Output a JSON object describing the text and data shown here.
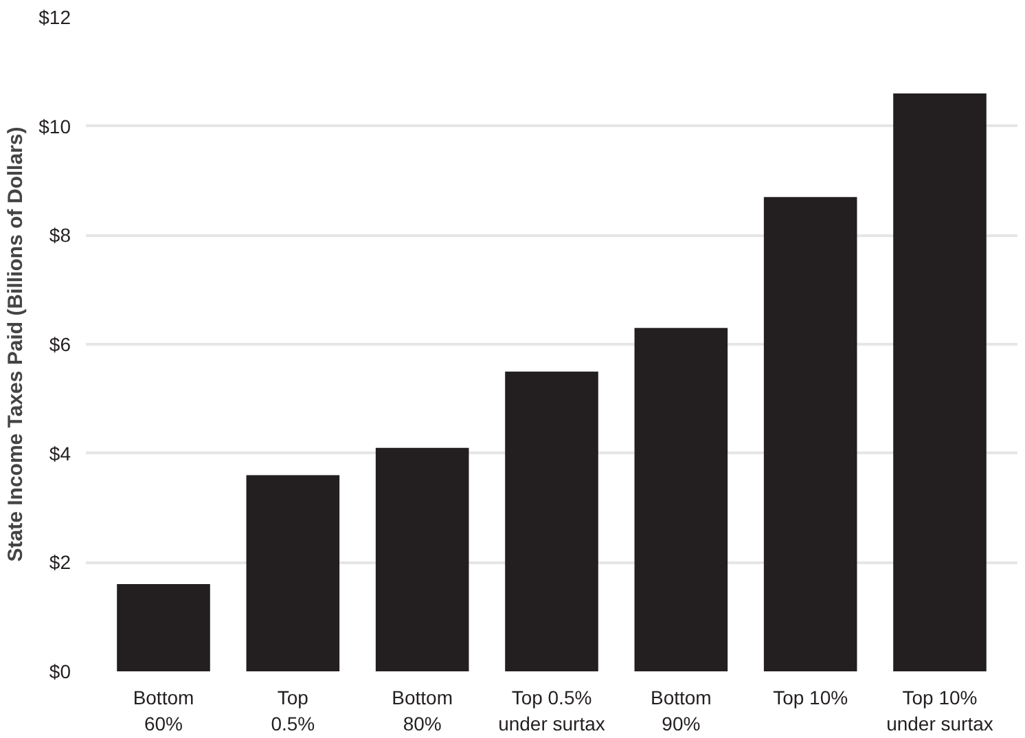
{
  "chart_data": {
    "type": "bar",
    "ylabel": "State Income Taxes Paid (Billions of Dollars)",
    "categories": [
      "Bottom\n60%",
      "Top\n0.5%",
      "Bottom\n80%",
      "Top 0.5%\nunder surtax",
      "Bottom\n90%",
      "Top 10%",
      "Top 10%\nunder surtax"
    ],
    "values": [
      1.6,
      3.6,
      4.1,
      5.5,
      6.3,
      8.7,
      10.6
    ],
    "color": "#231f20",
    "ylim": [
      0,
      12
    ],
    "yticks": [
      {
        "value": 0,
        "label": "$0"
      },
      {
        "value": 2,
        "label": "$2"
      },
      {
        "value": 4,
        "label": "$4"
      },
      {
        "value": 6,
        "label": "$6"
      },
      {
        "value": 8,
        "label": "$8"
      },
      {
        "value": 10,
        "label": "$10"
      },
      {
        "value": 12,
        "label": "$12"
      }
    ],
    "grid": "y"
  }
}
